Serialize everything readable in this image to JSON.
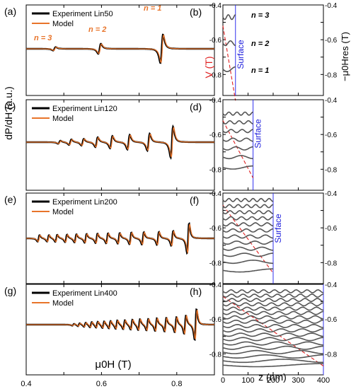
{
  "figure": {
    "left_panels": [
      {
        "label": "(a)",
        "legend_exp": "Experiment Lin50",
        "legend_model": "Model"
      },
      {
        "label": "(c)",
        "legend_exp": "Experiment Lin120",
        "legend_model": "Model"
      },
      {
        "label": "(e)",
        "legend_exp": "Experiment Lin200",
        "legend_model": "Model"
      },
      {
        "label": "(g)",
        "legend_exp": "Experiment Lin400",
        "legend_model": "Model"
      }
    ],
    "right_panels": [
      {
        "label": "(b)",
        "surface": "Surface"
      },
      {
        "label": "(d)",
        "surface": "Surface"
      },
      {
        "label": "(f)",
        "surface": "Surface"
      },
      {
        "label": "(h)",
        "surface": ""
      }
    ],
    "mode_labels": [
      "n = 3",
      "n = 2",
      "n = 1"
    ],
    "left_ylabel": "dP/dH (a.u.)",
    "left_xlabel": "μ0H (T)",
    "left_xticks": [
      "0.4",
      "0.6",
      "0.8"
    ],
    "right_ylabel_left": "V (T)",
    "right_ylabel_right": "−μ0Hres (T)",
    "right_xlabel": "z (nm)",
    "right_xticks": [
      "0",
      "100",
      "200",
      "300",
      "400"
    ],
    "right_yticks": [
      "-0.4",
      "-0.6",
      "-0.8"
    ]
  },
  "chart_data": [
    {
      "type": "line",
      "panel": "a",
      "series": [
        {
          "name": "Experiment Lin50",
          "color": "#000000"
        },
        {
          "name": "Model",
          "color": "#e8742a"
        }
      ],
      "x_range": [
        0.4,
        0.9
      ],
      "xlabel": "μ0H (T)",
      "ylabel": "dP/dH (a.u.)",
      "resonances_T": [
        0.475,
        0.595,
        0.76
      ],
      "resonance_labels": [
        "n = 3",
        "n = 2",
        "n = 1"
      ],
      "amplitudes": [
        0.12,
        0.35,
        1.0
      ]
    },
    {
      "type": "line",
      "panel": "c",
      "series": [
        {
          "name": "Experiment Lin120",
          "color": "#000000"
        },
        {
          "name": "Model",
          "color": "#e8742a"
        }
      ],
      "x_range": [
        0.4,
        0.9
      ],
      "resonances_T": [
        0.488,
        0.517,
        0.55,
        0.587,
        0.626,
        0.672,
        0.725,
        0.787
      ],
      "amplitudes": [
        0.1,
        0.18,
        0.22,
        0.32,
        0.4,
        0.48,
        0.55,
        1.0
      ]
    },
    {
      "type": "line",
      "panel": "e",
      "series": [
        {
          "name": "Experiment Lin200",
          "color": "#000000"
        },
        {
          "name": "Model",
          "color": "#e8742a"
        }
      ],
      "x_range": [
        0.4,
        0.9
      ],
      "resonances_T": [
        0.433,
        0.458,
        0.48,
        0.506,
        0.531,
        0.558,
        0.587,
        0.615,
        0.646,
        0.677,
        0.71,
        0.75,
        0.788,
        0.83
      ],
      "amplitudes": [
        0.22,
        0.22,
        0.24,
        0.26,
        0.28,
        0.3,
        0.32,
        0.34,
        0.36,
        0.4,
        0.42,
        0.44,
        0.5,
        1.0
      ]
    },
    {
      "type": "line",
      "panel": "g",
      "series": [
        {
          "name": "Experiment Lin400",
          "color": "#000000"
        },
        {
          "name": "Model",
          "color": "#e8742a"
        }
      ],
      "x_range": [
        0.4,
        0.9
      ],
      "resonances_T": [
        0.525,
        0.54,
        0.556,
        0.572,
        0.588,
        0.605,
        0.622,
        0.64,
        0.66,
        0.68,
        0.7,
        0.722,
        0.745,
        0.77,
        0.797,
        0.822,
        0.85
      ],
      "amplitudes": [
        0.06,
        0.1,
        0.14,
        0.18,
        0.2,
        0.22,
        0.25,
        0.28,
        0.3,
        0.33,
        0.36,
        0.38,
        0.42,
        0.45,
        0.5,
        0.6,
        1.0
      ]
    },
    {
      "type": "line",
      "panel": "b",
      "xlabel": "z (nm)",
      "x_range": [
        0,
        400
      ],
      "y_range": [
        -0.9,
        -0.4
      ],
      "thickness_nm": 50,
      "linear_potential": [
        [
          0,
          -0.52
        ],
        [
          50,
          -0.95
        ]
      ],
      "mode_levels_T": [
        -0.47,
        -0.62,
        -0.77
      ],
      "mode_labels": [
        "n = 3",
        "n = 2",
        "n = 1"
      ]
    },
    {
      "type": "line",
      "panel": "d",
      "x_range": [
        0,
        400
      ],
      "y_range": [
        -0.9,
        -0.4
      ],
      "thickness_nm": 120,
      "linear_potential": [
        [
          0,
          -0.52
        ],
        [
          120,
          -0.85
        ]
      ],
      "mode_levels_T": [
        -0.48,
        -0.53,
        -0.58,
        -0.63,
        -0.68,
        -0.73,
        -0.79
      ]
    },
    {
      "type": "line",
      "panel": "f",
      "x_range": [
        0,
        400
      ],
      "y_range": [
        -0.9,
        -0.4
      ],
      "thickness_nm": 200,
      "linear_potential": [
        [
          0,
          -0.47
        ],
        [
          200,
          -0.86
        ]
      ],
      "mode_levels_T": [
        -0.44,
        -0.475,
        -0.51,
        -0.545,
        -0.58,
        -0.615,
        -0.65,
        -0.685,
        -0.72,
        -0.755,
        -0.795,
        -0.845
      ]
    },
    {
      "type": "line",
      "panel": "h",
      "x_range": [
        0,
        400
      ],
      "y_range": [
        -0.9,
        -0.4
      ],
      "thickness_nm": 400,
      "linear_potential": [
        [
          0,
          -0.47
        ],
        [
          400,
          -0.87
        ]
      ],
      "mode_levels_T": [
        -0.44,
        -0.465,
        -0.49,
        -0.515,
        -0.54,
        -0.565,
        -0.59,
        -0.615,
        -0.64,
        -0.665,
        -0.69,
        -0.715,
        -0.74,
        -0.765,
        -0.79,
        -0.815,
        -0.84,
        -0.865
      ]
    }
  ]
}
